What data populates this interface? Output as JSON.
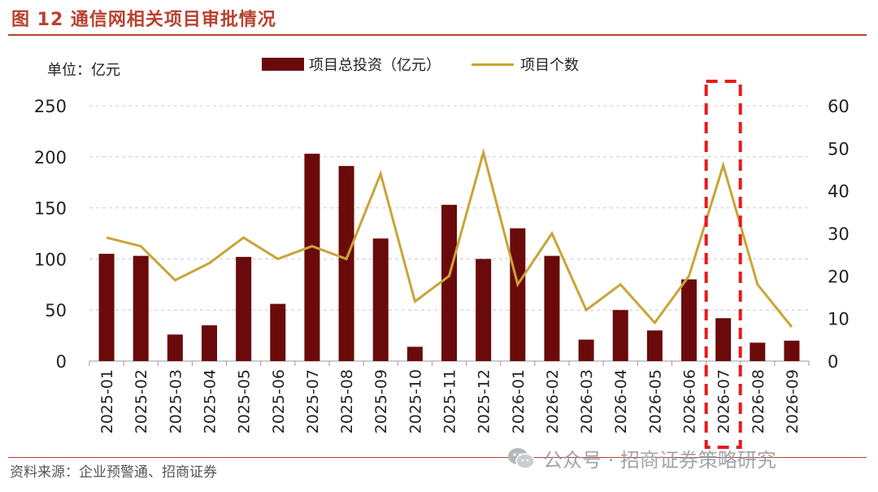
{
  "title": "图 12 通信网相关项目审批情况",
  "unit_label": "单位：亿元",
  "source": "资料来源：企业预警通、招商证券",
  "watermark": "公众号 · 招商证券策略研究",
  "colors": {
    "bar": "#6B0A0A",
    "line": "#C9A437",
    "accent": "#B8412F",
    "highlight": "#E8191C",
    "grid": "#CCCCCC"
  },
  "chart_data": {
    "type": "bar",
    "categories": [
      "2025-01",
      "2025-02",
      "2025-03",
      "2025-04",
      "2025-05",
      "2025-06",
      "2025-07",
      "2025-08",
      "2025-09",
      "2025-10",
      "2025-11",
      "2025-12",
      "2026-01",
      "2026-02",
      "2026-03",
      "2026-04",
      "2026-05",
      "2026-06",
      "2026-07",
      "2026-08",
      "2026-09"
    ],
    "series": [
      {
        "name": "项目总投资（亿元）",
        "type": "bar",
        "axis": "left",
        "values": [
          105,
          103,
          26,
          35,
          102,
          56,
          203,
          191,
          120,
          14,
          153,
          100,
          130,
          103,
          21,
          50,
          30,
          80,
          42,
          18,
          20
        ]
      },
      {
        "name": "项目个数",
        "type": "line",
        "axis": "right",
        "values": [
          29,
          27,
          19,
          23,
          29,
          24,
          27,
          24,
          44,
          14,
          20,
          49,
          18,
          30,
          12,
          18,
          9,
          20,
          46,
          18,
          8
        ]
      }
    ],
    "y_left": {
      "min": 0,
      "max": 250,
      "ticks": [
        0,
        50,
        100,
        150,
        200,
        250
      ]
    },
    "y_right": {
      "min": 0,
      "max": 60,
      "ticks": [
        0,
        10,
        20,
        30,
        40,
        50,
        60
      ]
    },
    "grid": true,
    "legend": "top-center",
    "highlight_category": "2026-07"
  }
}
